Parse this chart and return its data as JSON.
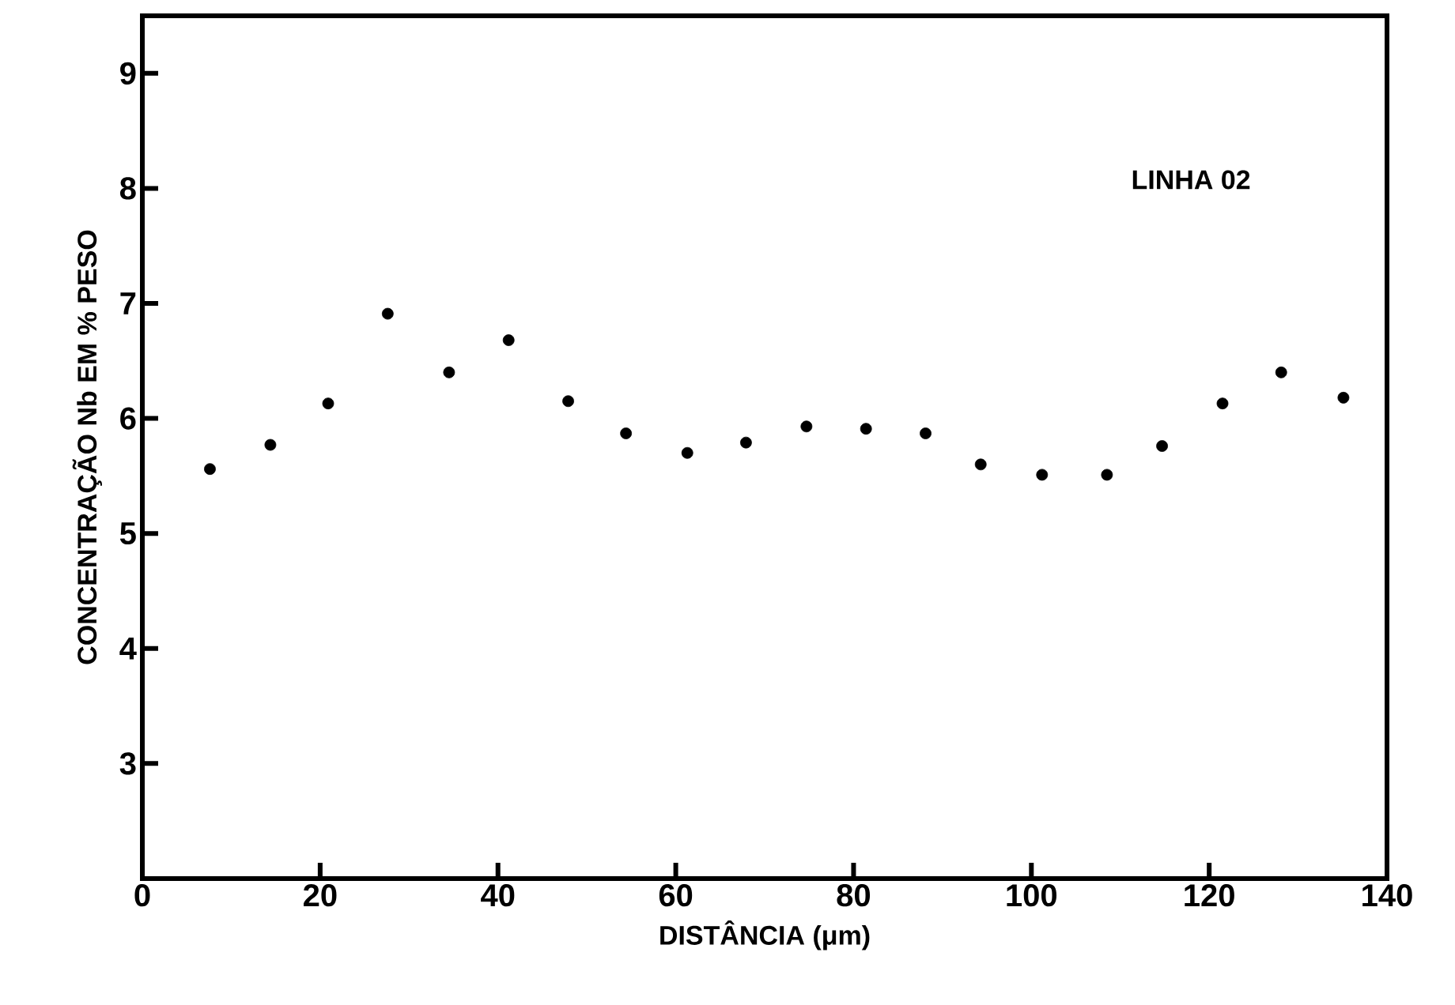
{
  "chart_data": {
    "type": "scatter",
    "xlabel": "DISTÂNCIA (μm)",
    "ylabel": "CONCENTRAÇÃO Nb EM % PESO",
    "annotations": [
      "LINHA 02"
    ],
    "x": [
      7.6,
      14.4,
      20.9,
      27.6,
      34.5,
      41.2,
      47.9,
      54.4,
      61.3,
      67.9,
      74.7,
      81.4,
      88.1,
      94.3,
      101.2,
      108.5,
      114.7,
      121.5,
      128.1,
      135.1
    ],
    "values": [
      5.56,
      5.77,
      6.13,
      6.91,
      6.4,
      6.68,
      6.15,
      5.87,
      5.7,
      5.79,
      5.93,
      5.91,
      5.87,
      5.6,
      5.51,
      5.51,
      5.76,
      6.13,
      6.4,
      6.18
    ],
    "color": "#000000",
    "marker": "circle",
    "xlim": [
      0,
      140
    ],
    "ylim": [
      2,
      9.5
    ],
    "xticks": [
      0,
      20,
      40,
      60,
      80,
      100,
      120,
      140
    ],
    "yticks": [
      3,
      4,
      5,
      6,
      7,
      8,
      9
    ]
  }
}
